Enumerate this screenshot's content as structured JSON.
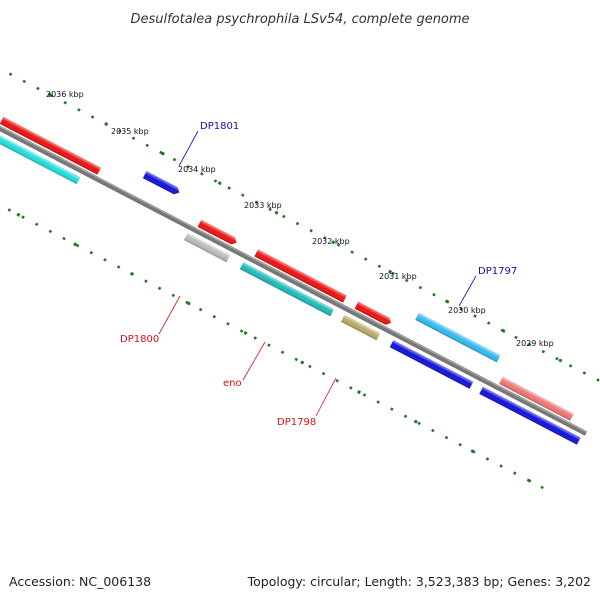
{
  "title": "Desulfotalea psychrophila LSv54, complete genome",
  "footer": {
    "accession": "Accession: NC_006138",
    "summary": "Topology: circular; Length: 3,523,383 bp; Genes: 3,202"
  },
  "scale_labels": [
    "2036 kbp",
    "2035 kbp",
    "2034 kbp",
    "2033 kbp",
    "2032 kbp",
    "2031 kbp",
    "2030 kbp",
    "2029 kbp"
  ],
  "gene_labels": {
    "dp1801": "DP1801",
    "dp1797": "DP1797",
    "dp1800": "DP1800",
    "eno": "eno",
    "dp1798": "DP1798"
  },
  "colors": {
    "red": "#ee1111",
    "cyan": "#22dddd",
    "blue": "#1111dd",
    "gray": "#bbbbbb",
    "teal": "#20bbbb",
    "olive": "#bbaa66",
    "lightblue": "#33bbee",
    "salmon": "#ee7777",
    "tick": "#227722",
    "backbone": "#777777",
    "forward_label": "#1111aa",
    "reverse_label": "#dd1111"
  }
}
